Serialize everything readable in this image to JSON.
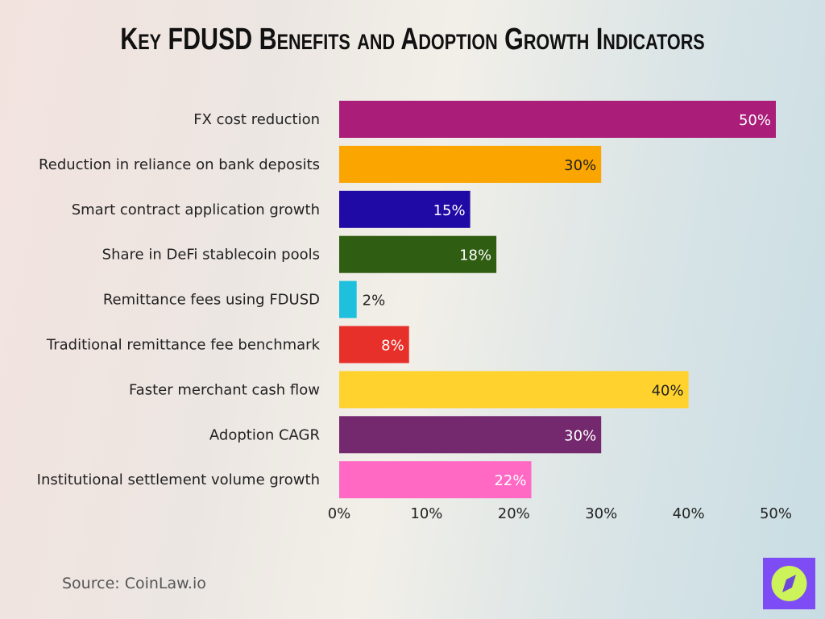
{
  "title": "Key FDUSD Benefits and Adoption Growth Indicators",
  "source": "Source: CoinLaw.io",
  "chart_data": {
    "type": "bar",
    "orientation": "horizontal",
    "title": "Key FDUSD Benefits and Adoption Growth Indicators",
    "categories": [
      "FX cost reduction",
      "Reduction in reliance on bank deposits",
      "Smart contract application growth",
      "Share in DeFi stablecoin pools",
      "Remittance fees using FDUSD",
      "Traditional remittance fee benchmark",
      "Faster merchant cash flow",
      "Adoption CAGR",
      "Institutional settlement volume growth"
    ],
    "values": [
      50,
      30,
      15,
      18,
      2,
      8,
      40,
      30,
      22
    ],
    "data_labels": [
      "50%",
      "30%",
      "15%",
      "18%",
      "2%",
      "8%",
      "40%",
      "30%",
      "22%"
    ],
    "colors": [
      "#aa1e7a",
      "#fba500",
      "#1f0aa6",
      "#2f5e12",
      "#1ec0dd",
      "#e8302a",
      "#ffd22e",
      "#74296e",
      "#ff69c4"
    ],
    "xlim": [
      0,
      50
    ],
    "xticks": [
      "0%",
      "10%",
      "20%",
      "30%",
      "40%",
      "50%"
    ],
    "grid": false,
    "legend": "none"
  }
}
